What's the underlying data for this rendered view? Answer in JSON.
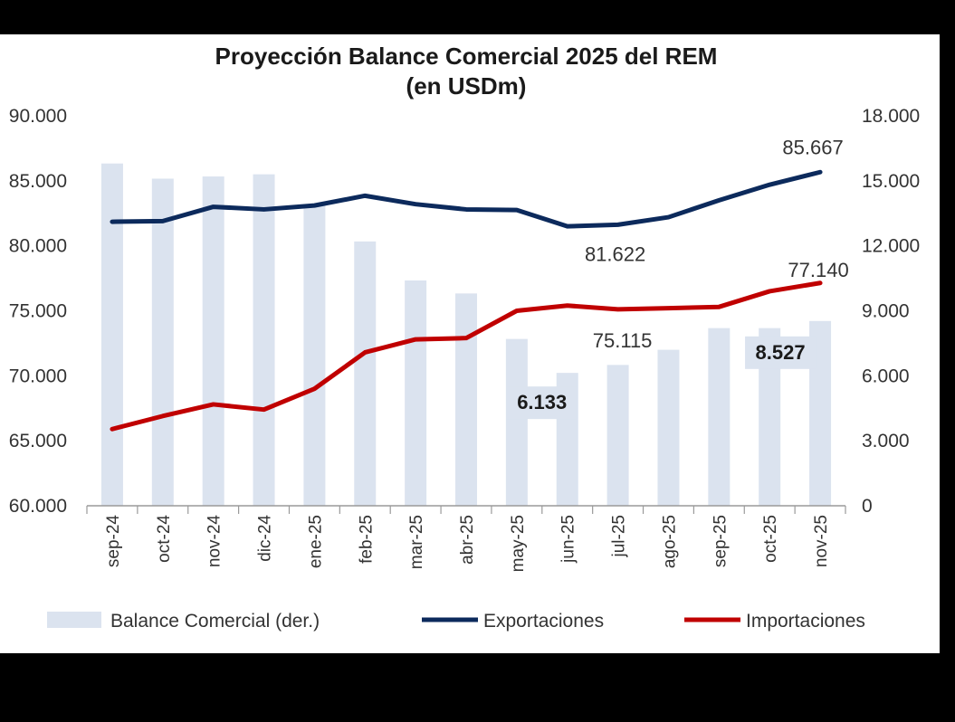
{
  "chart_data": {
    "type": "bar+line",
    "title": "Proyección Balance Comercial 2025 del REM",
    "subtitle": "(en USDm)",
    "categories": [
      "sep-24",
      "oct-24",
      "nov-24",
      "dic-24",
      "ene-25",
      "feb-25",
      "mar-25",
      "abr-25",
      "may-25",
      "jun-25",
      "jul-25",
      "ago-25",
      "sep-25",
      "oct-25",
      "nov-25"
    ],
    "y_left": {
      "min": 60000,
      "max": 90000,
      "ticks": [
        "60.000",
        "65.000",
        "70.000",
        "75.000",
        "80.000",
        "85.000",
        "90.000"
      ]
    },
    "y_right": {
      "min": 0,
      "max": 18000,
      "ticks": [
        "0",
        "3.000",
        "6.000",
        "9.000",
        "12.000",
        "15.000",
        "18.000"
      ]
    },
    "series": [
      {
        "name": "Balance  Comercial (der.)",
        "kind": "bar",
        "axis": "right",
        "color": "#dbe3ef",
        "values": [
          15800,
          15100,
          15200,
          15300,
          13900,
          12200,
          10400,
          9800,
          7700,
          6133,
          6500,
          7200,
          8200,
          8200,
          8527
        ]
      },
      {
        "name": "Exportaciones",
        "kind": "line",
        "axis": "left",
        "color": "#0c2a5c",
        "values": [
          81850,
          81900,
          83000,
          82800,
          83100,
          83850,
          83200,
          82800,
          82750,
          81500,
          81622,
          82200,
          83500,
          84700,
          85667
        ]
      },
      {
        "name": "Importaciones",
        "kind": "line",
        "axis": "left",
        "color": "#c00000",
        "values": [
          65900,
          66900,
          67800,
          67400,
          69000,
          71800,
          72800,
          72900,
          75000,
          75400,
          75115,
          75200,
          75300,
          76500,
          77140
        ]
      }
    ],
    "annotations": [
      {
        "label": "85.667",
        "series": "Exportaciones",
        "index": 14,
        "style": "plain"
      },
      {
        "label": "81.622",
        "series": "Exportaciones",
        "index": 10,
        "style": "plain"
      },
      {
        "label": "77.140",
        "series": "Importaciones",
        "index": 14,
        "style": "plain"
      },
      {
        "label": "75.115",
        "series": "Importaciones",
        "index": 10,
        "style": "plain"
      },
      {
        "label": "6.133",
        "series": "Balance  Comercial (der.)",
        "index": 9,
        "style": "boxed-bold"
      },
      {
        "label": "8.527",
        "series": "Balance  Comercial (der.)",
        "index": 14,
        "style": "boxed-bold"
      }
    ],
    "legend_position": "bottom"
  }
}
